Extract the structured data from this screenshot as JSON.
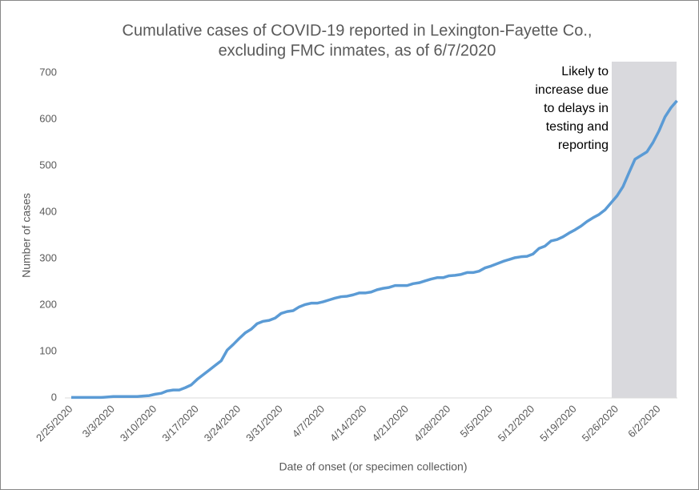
{
  "chart_data": {
    "type": "line",
    "title": [
      "Cumulative cases of COVID-19 reported in Lexington-Fayette Co.,",
      "excluding FMC inmates, as of 6/7/2020"
    ],
    "x_label": "Date of onset (or specimen collection)",
    "y_label": "Number of cases",
    "annotation": [
      "Likely to",
      "increase due",
      "to delays in",
      "testing and",
      "reporting"
    ],
    "categories": [
      "2/25/2020",
      null,
      null,
      null,
      null,
      null,
      null,
      "3/3/2020",
      null,
      null,
      null,
      null,
      null,
      null,
      "3/10/2020",
      null,
      null,
      null,
      null,
      null,
      null,
      "3/17/2020",
      null,
      null,
      null,
      null,
      null,
      null,
      "3/24/2020",
      null,
      null,
      null,
      null,
      null,
      null,
      "3/31/2020",
      null,
      null,
      null,
      null,
      null,
      null,
      "4/7/2020",
      null,
      null,
      null,
      null,
      null,
      null,
      "4/14/2020",
      null,
      null,
      null,
      null,
      null,
      null,
      "4/21/2020",
      null,
      null,
      null,
      null,
      null,
      null,
      "4/28/2020",
      null,
      null,
      null,
      null,
      null,
      null,
      "5/5/2020",
      null,
      null,
      null,
      null,
      null,
      null,
      "5/12/2020",
      null,
      null,
      null,
      null,
      null,
      null,
      "5/19/2020",
      null,
      null,
      null,
      null,
      null,
      null,
      "5/26/2020",
      null,
      null,
      null,
      null,
      null,
      null,
      "6/2/2020",
      null,
      null,
      null
    ],
    "values": [
      1,
      1,
      1,
      1,
      1,
      1,
      2,
      3,
      3,
      3,
      3,
      3,
      4,
      5,
      8,
      10,
      15,
      17,
      17,
      22,
      28,
      40,
      50,
      60,
      70,
      80,
      103,
      115,
      128,
      140,
      148,
      160,
      165,
      167,
      172,
      182,
      186,
      188,
      196,
      201,
      204,
      204,
      207,
      211,
      215,
      218,
      219,
      222,
      226,
      226,
      228,
      233,
      236,
      238,
      242,
      242,
      242,
      246,
      248,
      252,
      256,
      259,
      259,
      263,
      264,
      266,
      270,
      270,
      273,
      280,
      284,
      289,
      294,
      298,
      302,
      304,
      305,
      310,
      322,
      327,
      338,
      341,
      347,
      355,
      362,
      370,
      380,
      388,
      395,
      405,
      420,
      435,
      455,
      485,
      514,
      522,
      530,
      550,
      575,
      605,
      625,
      640
    ],
    "color": "#5b9bd5",
    "ylim": [
      0,
      700
    ],
    "yticks": [
      0,
      100,
      200,
      300,
      400,
      500,
      600,
      700
    ]
  }
}
